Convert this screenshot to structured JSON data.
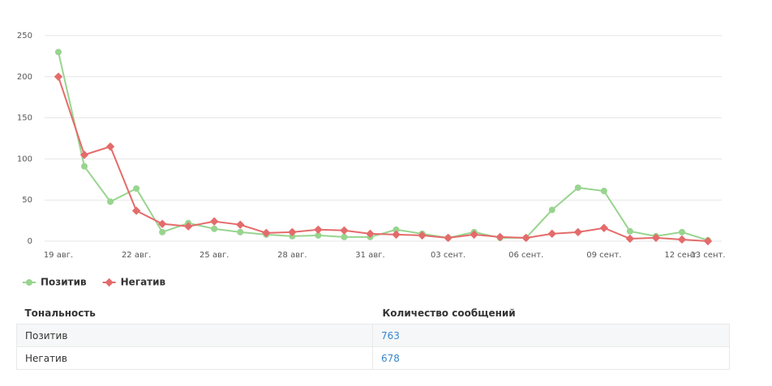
{
  "chart_data": {
    "type": "line",
    "categories": [
      "19 авг.",
      null,
      null,
      "22 авг.",
      null,
      null,
      "25 авг.",
      null,
      null,
      "28 авг.",
      null,
      null,
      "31 авг.",
      null,
      null,
      "03 сент.",
      null,
      null,
      "06 сент.",
      null,
      null,
      "09 сент.",
      null,
      null,
      "12 сент.",
      "13 сент."
    ],
    "series": [
      {
        "name": "Позитив",
        "color": "#98d48f",
        "marker": "circle",
        "values": [
          230,
          91,
          48,
          64,
          11,
          22,
          15,
          11,
          8,
          6,
          7,
          5,
          5,
          14,
          9,
          4,
          11,
          4,
          4,
          38,
          65,
          61,
          12,
          6,
          11,
          1
        ]
      },
      {
        "name": "Негатив",
        "color": "#e46b6b",
        "marker": "diamond",
        "values": [
          200,
          105,
          115,
          37,
          21,
          18,
          24,
          20,
          10,
          11,
          14,
          13,
          9,
          8,
          7,
          4,
          8,
          5,
          4,
          9,
          11,
          16,
          3,
          4,
          2,
          0
        ]
      }
    ],
    "ylim": [
      0,
      250
    ],
    "yticks": [
      0,
      50,
      100,
      150,
      200,
      250
    ],
    "grid": true,
    "legend": "bottom-left"
  },
  "table": {
    "columns": [
      "Тональность",
      "Количество сообщений"
    ],
    "rows": [
      [
        "Позитив",
        763
      ],
      [
        "Негатив",
        678
      ]
    ]
  }
}
